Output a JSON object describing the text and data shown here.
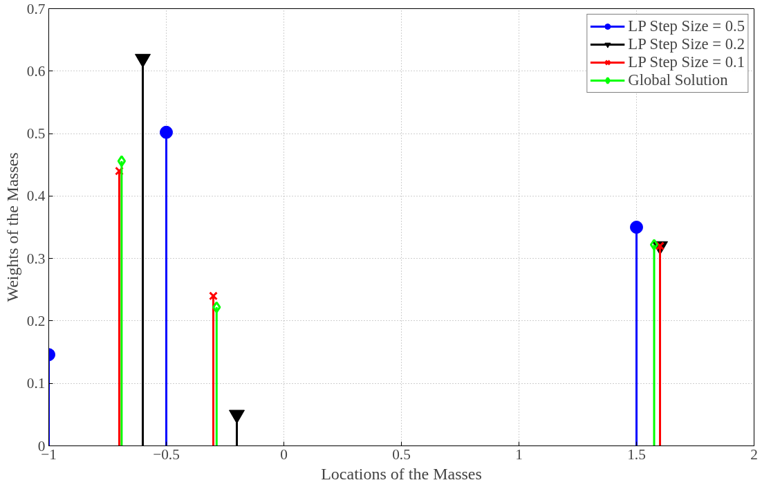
{
  "chart_data": {
    "type": "lollipop",
    "xlabel": "Locations of the Masses",
    "ylabel": "Weights of the Masses",
    "xlim": [
      -1,
      2
    ],
    "ylim": [
      0,
      0.7
    ],
    "xticks": [
      {
        "value": -1,
        "label": "−1"
      },
      {
        "value": -0.5,
        "label": "−0.5"
      },
      0,
      0.5,
      1,
      1.5,
      2
    ],
    "yticks": [
      0,
      0.1,
      0.2,
      0.3,
      0.4,
      0.5,
      0.6,
      0.7
    ],
    "grid": true,
    "legend": "top right",
    "series": [
      {
        "name": "LP Step Size = 0.5",
        "color": "#0000ff",
        "marker": "circle",
        "x": [
          -1,
          -0.5,
          1.5
        ],
        "values": [
          0.146,
          0.502,
          0.35
        ]
      },
      {
        "name": "LP Step Size = 0.2",
        "color": "#000000",
        "marker": "triangle",
        "x": [
          -0.6,
          -0.2,
          1.6
        ],
        "values": [
          0.62,
          0.05,
          0.32
        ]
      },
      {
        "name": "LP Step Size = 0.1",
        "color": "#ff0000",
        "marker": "cross",
        "x": [
          -0.7,
          -0.3,
          1.6
        ],
        "values": [
          0.44,
          0.24,
          0.32
        ]
      },
      {
        "name": "Global Solution",
        "color": "#00ff00",
        "marker": "diamond",
        "x": [
          -0.69,
          -0.286,
          1.575
        ],
        "values": [
          0.456,
          0.222,
          0.322
        ]
      }
    ]
  }
}
